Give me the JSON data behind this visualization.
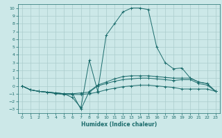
{
  "title": "",
  "xlabel": "Humidex (Indice chaleur)",
  "bg_color": "#cce8e8",
  "grid_color": "#aacccc",
  "line_color": "#1a6b6b",
  "xlim": [
    -0.5,
    23.5
  ],
  "ylim": [
    -3.5,
    10.5
  ],
  "xticks": [
    0,
    1,
    2,
    3,
    4,
    5,
    6,
    7,
    8,
    9,
    10,
    11,
    12,
    13,
    14,
    15,
    16,
    17,
    18,
    19,
    20,
    21,
    22,
    23
  ],
  "yticks": [
    -3,
    -2,
    -1,
    0,
    1,
    2,
    3,
    4,
    5,
    6,
    7,
    8,
    9,
    10
  ],
  "line_big_x": [
    0,
    1,
    2,
    3,
    4,
    5,
    6,
    7,
    8,
    9,
    10,
    11,
    12,
    13,
    14,
    15,
    16,
    17,
    18,
    19,
    20,
    21,
    22,
    23
  ],
  "line_big_y": [
    0,
    -0.5,
    -0.7,
    -0.8,
    -0.9,
    -1.0,
    -1.5,
    -2.8,
    3.3,
    -0.7,
    6.5,
    8.0,
    9.5,
    10.0,
    10.0,
    9.8,
    5.0,
    3.0,
    2.2,
    2.3,
    1.0,
    0.5,
    0.3,
    -0.7
  ],
  "line_med_x": [
    0,
    1,
    2,
    3,
    4,
    5,
    6,
    7,
    8,
    9,
    10,
    11,
    12,
    13,
    14,
    15,
    16,
    17,
    18,
    19,
    20,
    21,
    22,
    23
  ],
  "line_med_y": [
    0,
    -0.5,
    -0.7,
    -0.8,
    -0.9,
    -1.0,
    -1.0,
    -3.0,
    -0.7,
    0.1,
    0.5,
    0.9,
    1.2,
    1.3,
    1.3,
    1.3,
    1.2,
    1.1,
    1.0,
    1.0,
    1.0,
    0.5,
    0.3,
    -0.7
  ],
  "line_flat1_x": [
    0,
    1,
    2,
    3,
    4,
    5,
    6,
    7,
    8,
    9,
    10,
    11,
    12,
    13,
    14,
    15,
    16,
    17,
    18,
    19,
    20,
    21,
    22,
    23
  ],
  "line_flat1_y": [
    0,
    -0.5,
    -0.7,
    -0.8,
    -0.9,
    -1.0,
    -1.0,
    -0.9,
    -0.8,
    0.0,
    0.3,
    0.6,
    0.8,
    0.9,
    1.0,
    1.0,
    0.9,
    0.8,
    0.7,
    0.8,
    0.8,
    0.3,
    0.1,
    -0.7
  ],
  "line_flat2_x": [
    0,
    1,
    2,
    3,
    4,
    5,
    6,
    7,
    8,
    9,
    10,
    11,
    12,
    13,
    14,
    15,
    16,
    17,
    18,
    19,
    20,
    21,
    22,
    23
  ],
  "line_flat2_y": [
    0,
    -0.5,
    -0.7,
    -0.8,
    -1.0,
    -1.1,
    -1.1,
    -1.1,
    -1.0,
    -0.8,
    -0.5,
    -0.3,
    -0.1,
    0.0,
    0.1,
    0.1,
    0.0,
    -0.1,
    -0.2,
    -0.4,
    -0.4,
    -0.4,
    -0.4,
    -0.7
  ]
}
